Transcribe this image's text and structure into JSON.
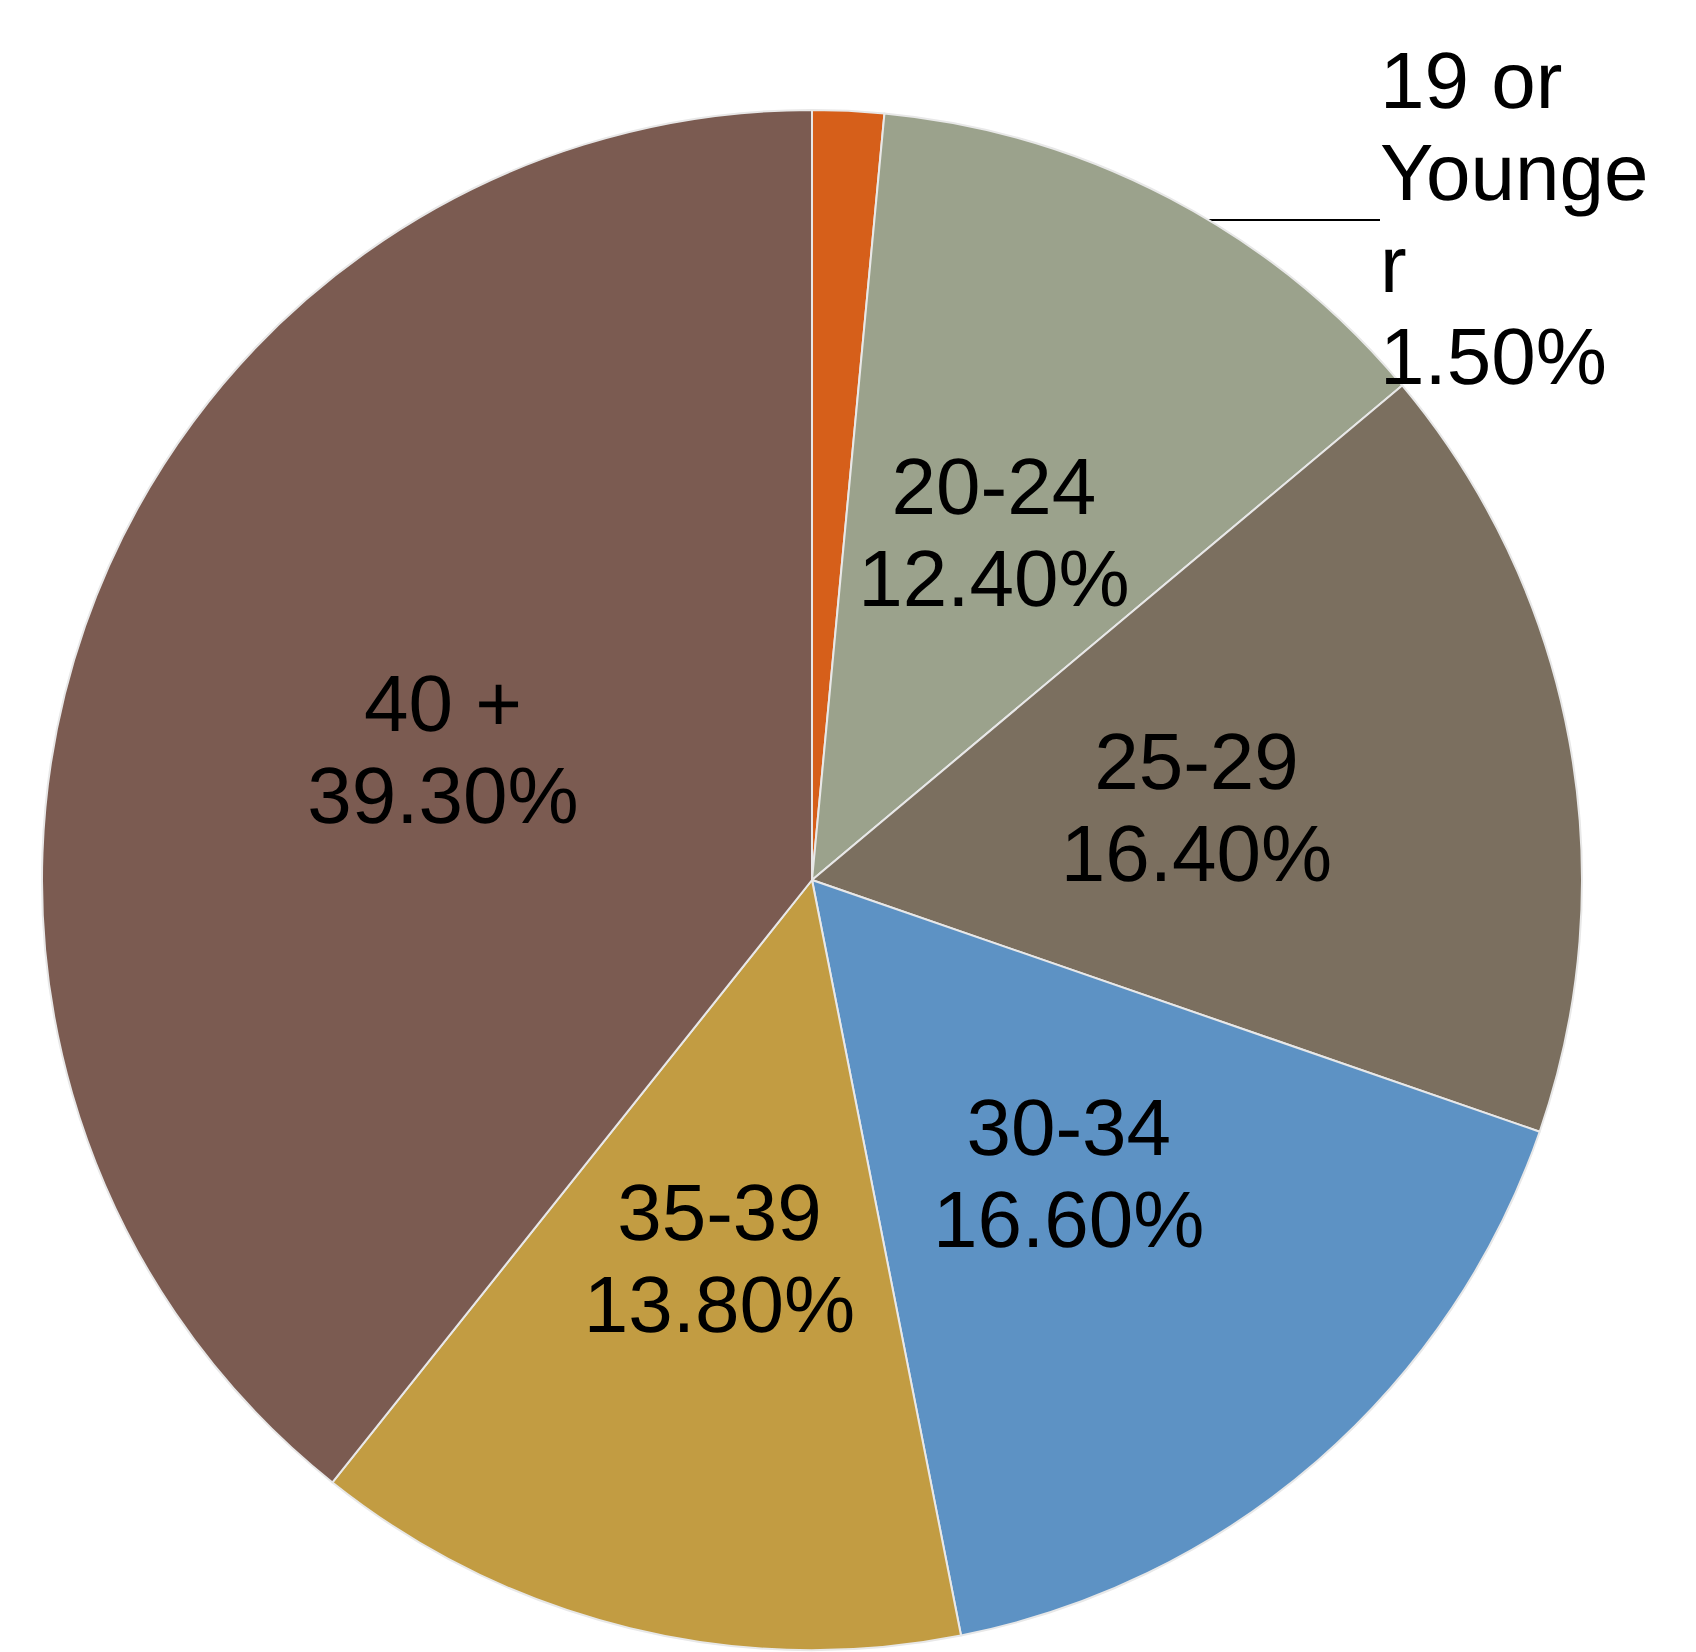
{
  "chart_data": {
    "type": "pie",
    "categories": [
      "19 or Younger",
      "20-24",
      "25-29",
      "30-34",
      "35-39",
      "40 +"
    ],
    "values": [
      1.5,
      12.4,
      16.4,
      16.6,
      13.8,
      39.3
    ],
    "value_labels": [
      "1.50%",
      "12.40%",
      "16.40%",
      "16.60%",
      "13.80%",
      "39.30%"
    ],
    "colors": [
      "#d65f1a",
      "#9ba28c",
      "#7b6f5f",
      "#5d92c4",
      "#c29c42",
      "#7b5b51"
    ]
  }
}
